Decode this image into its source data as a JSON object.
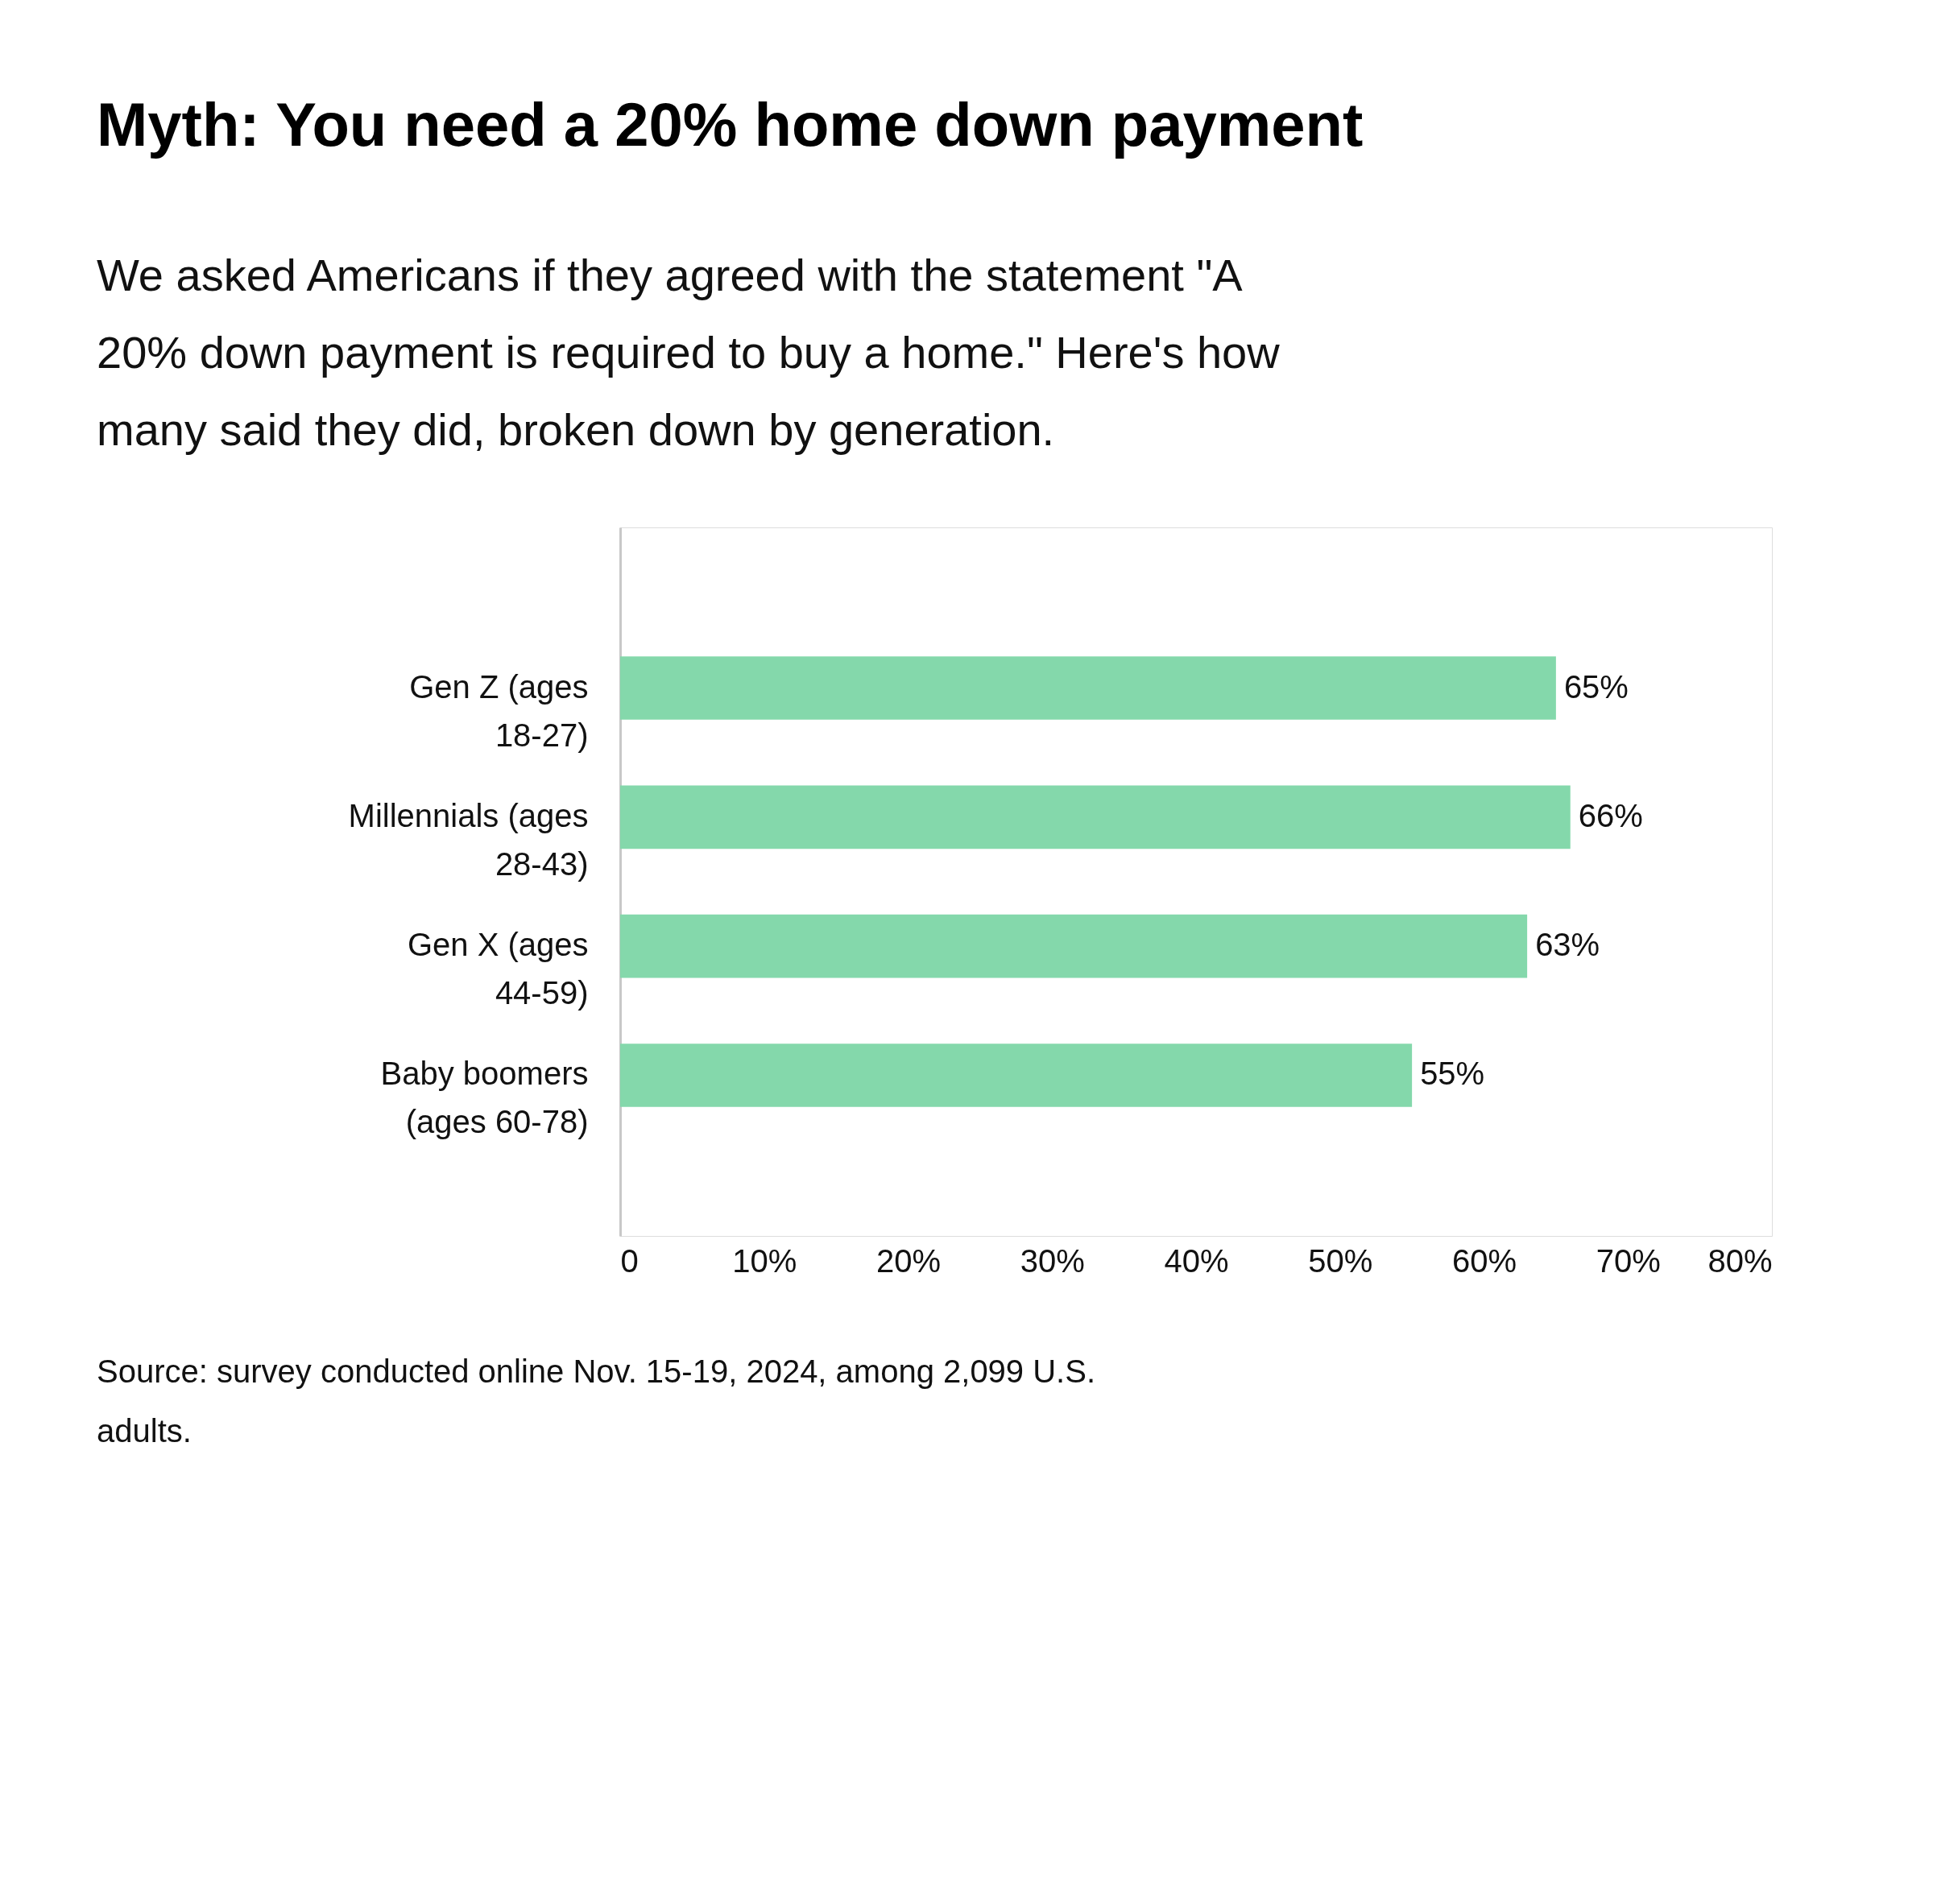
{
  "chart_data": {
    "type": "bar",
    "orientation": "horizontal",
    "title": "Myth: You need a 20% home down payment",
    "subtitle": "We asked Americans if they agreed with the statement \"A 20% down payment is required to buy a home.\" Here's how many said they did, broken down by generation.",
    "categories": [
      "Gen Z (ages 18-27)",
      "Millennials (ages 28-43)",
      "Gen X (ages 44-59)",
      "Baby boomers (ages 60-78)"
    ],
    "values": [
      65,
      66,
      63,
      55
    ],
    "value_labels": [
      "65%",
      "66%",
      "63%",
      "55%"
    ],
    "color": "#84d8ab",
    "xlim": [
      0,
      80
    ],
    "xticks": [
      0,
      {
        "value": 10,
        "label": "10%"
      },
      {
        "value": 20,
        "label": "20%"
      },
      {
        "value": 30,
        "label": "30%"
      },
      {
        "value": 40,
        "label": "40%"
      },
      {
        "value": 50,
        "label": "50%"
      },
      {
        "value": 60,
        "label": "60%"
      },
      {
        "value": 70,
        "label": "70%"
      },
      {
        "value": 80,
        "label": "80%"
      }
    ],
    "grid": false,
    "annotations": [
      "Source: survey conducted online Nov. 15-19, 2024, among 2,099 U.S. adults."
    ]
  }
}
